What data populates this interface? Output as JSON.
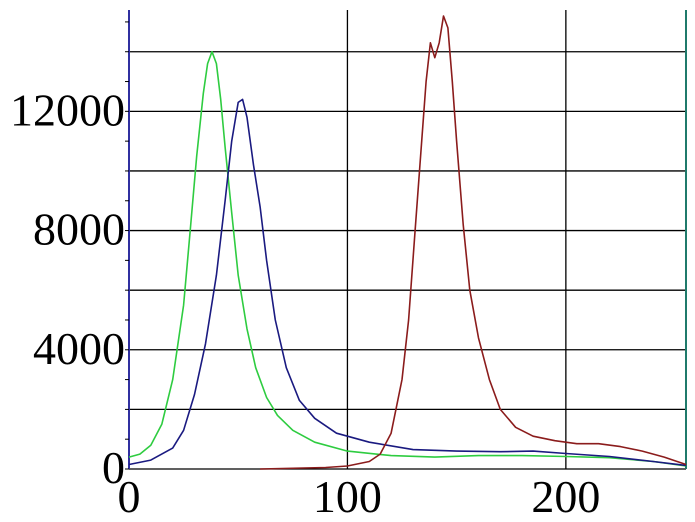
{
  "chart_data": {
    "type": "line",
    "title": "",
    "xlabel": "",
    "ylabel": "",
    "xlim": [
      0,
      255
    ],
    "ylim": [
      0,
      15400
    ],
    "grid": true,
    "x_ticks": [
      0,
      100,
      200
    ],
    "x_tick_labels": [
      "0",
      "100",
      "200"
    ],
    "x_grid": [
      0,
      100,
      200,
      255
    ],
    "y_ticks": [
      0,
      4000,
      8000,
      12000
    ],
    "y_tick_labels": [
      "0",
      "4000",
      "8000",
      "12000"
    ],
    "y_grid": [
      0,
      2000,
      4000,
      6000,
      8000,
      10000,
      12000,
      14000
    ],
    "series": [
      {
        "color": "#2ecc40",
        "points": [
          [
            0,
            400
          ],
          [
            5,
            500
          ],
          [
            10,
            800
          ],
          [
            15,
            1500
          ],
          [
            20,
            3000
          ],
          [
            25,
            5500
          ],
          [
            28,
            8000
          ],
          [
            31,
            10500
          ],
          [
            34,
            12600
          ],
          [
            36,
            13600
          ],
          [
            38,
            14000
          ],
          [
            40,
            13600
          ],
          [
            42,
            12400
          ],
          [
            44,
            10800
          ],
          [
            47,
            8600
          ],
          [
            50,
            6500
          ],
          [
            54,
            4700
          ],
          [
            58,
            3400
          ],
          [
            63,
            2400
          ],
          [
            68,
            1800
          ],
          [
            75,
            1300
          ],
          [
            85,
            900
          ],
          [
            100,
            600
          ],
          [
            120,
            450
          ],
          [
            140,
            400
          ],
          [
            160,
            450
          ],
          [
            180,
            450
          ],
          [
            200,
            420
          ],
          [
            220,
            380
          ],
          [
            240,
            250
          ],
          [
            255,
            100
          ]
        ]
      },
      {
        "color": "#1a1a80",
        "points": [
          [
            0,
            150
          ],
          [
            10,
            300
          ],
          [
            20,
            700
          ],
          [
            25,
            1300
          ],
          [
            30,
            2500
          ],
          [
            35,
            4200
          ],
          [
            40,
            6500
          ],
          [
            44,
            9000
          ],
          [
            47,
            11000
          ],
          [
            50,
            12300
          ],
          [
            52,
            12400
          ],
          [
            54,
            11800
          ],
          [
            57,
            10200
          ],
          [
            60,
            8800
          ],
          [
            63,
            7000
          ],
          [
            67,
            5000
          ],
          [
            72,
            3400
          ],
          [
            78,
            2300
          ],
          [
            85,
            1700
          ],
          [
            95,
            1200
          ],
          [
            110,
            900
          ],
          [
            130,
            650
          ],
          [
            150,
            600
          ],
          [
            170,
            580
          ],
          [
            185,
            600
          ],
          [
            200,
            520
          ],
          [
            220,
            420
          ],
          [
            240,
            250
          ],
          [
            255,
            120
          ]
        ]
      },
      {
        "color": "#8b1c1c",
        "points": [
          [
            60,
            0
          ],
          [
            90,
            50
          ],
          [
            100,
            100
          ],
          [
            110,
            250
          ],
          [
            115,
            500
          ],
          [
            120,
            1200
          ],
          [
            125,
            3000
          ],
          [
            128,
            5000
          ],
          [
            131,
            8000
          ],
          [
            134,
            11000
          ],
          [
            136,
            13000
          ],
          [
            138,
            14300
          ],
          [
            140,
            13800
          ],
          [
            142,
            14300
          ],
          [
            144,
            15200
          ],
          [
            146,
            14800
          ],
          [
            148,
            13000
          ],
          [
            150,
            11000
          ],
          [
            153,
            8200
          ],
          [
            156,
            6000
          ],
          [
            160,
            4400
          ],
          [
            165,
            3000
          ],
          [
            170,
            2000
          ],
          [
            177,
            1400
          ],
          [
            185,
            1100
          ],
          [
            195,
            950
          ],
          [
            205,
            850
          ],
          [
            215,
            850
          ],
          [
            225,
            750
          ],
          [
            235,
            600
          ],
          [
            245,
            400
          ],
          [
            255,
            150
          ]
        ]
      }
    ]
  }
}
